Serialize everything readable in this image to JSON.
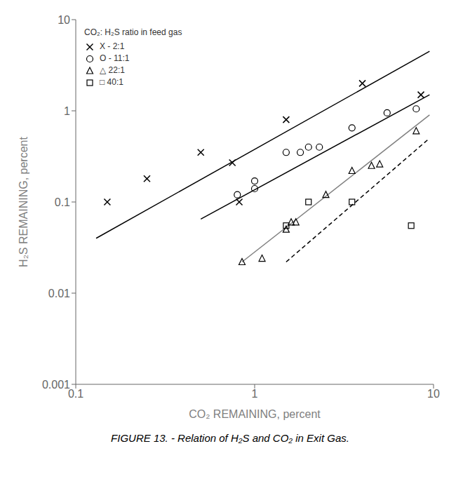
{
  "chart_data": {
    "type": "scatter",
    "title": "FIGURE 13.  -  Relation of H₂S and CO₂ in Exit Gas.",
    "x_label": "CO₂ REMAINING, percent",
    "y_label": "H₂S REMAINING, percent",
    "log": true,
    "xlim": [
      0.1,
      10
    ],
    "ylim": [
      0.001,
      10
    ],
    "xticks": [
      0.1,
      1,
      10
    ],
    "yticks": [
      0.001,
      0.01,
      0.1,
      1,
      10
    ],
    "legend": "upper left",
    "legend_title": "CO₂: H₂S ratio in feed gas",
    "series": [
      {
        "name": "X -  2:1",
        "type": "scatter",
        "marker": "x",
        "color": "#000000",
        "x": [
          0.15,
          0.25,
          0.5,
          0.75,
          0.82,
          1.5,
          4.0,
          8.5
        ],
        "values": [
          0.1,
          0.18,
          0.35,
          0.27,
          0.1,
          0.8,
          2.0,
          1.5
        ]
      },
      {
        "name": "O - 11:1",
        "type": "scatter",
        "marker": "circle",
        "color": "#000000",
        "x": [
          0.8,
          1.0,
          1.0,
          1.5,
          1.8,
          2.0,
          2.3,
          3.5,
          5.5,
          8.0
        ],
        "values": [
          0.12,
          0.14,
          0.17,
          0.35,
          0.35,
          0.4,
          0.4,
          0.65,
          0.95,
          1.05
        ]
      },
      {
        "name": "△  22:1",
        "type": "scatter",
        "marker": "triangle",
        "color": "#000000",
        "x": [
          0.85,
          1.1,
          1.5,
          1.6,
          1.7,
          2.5,
          3.5,
          4.5,
          5.0,
          8.0
        ],
        "values": [
          0.022,
          0.024,
          0.05,
          0.06,
          0.06,
          0.12,
          0.22,
          0.25,
          0.26,
          0.6
        ]
      },
      {
        "name": "□  40:1",
        "type": "scatter",
        "marker": "square",
        "color": "#000000",
        "x": [
          1.5,
          2.0,
          3.5,
          7.5
        ],
        "values": [
          0.055,
          0.1,
          0.1,
          0.055
        ]
      },
      {
        "type": "line",
        "color": "#000000",
        "line_style": "solid",
        "x": [
          0.13,
          9.5
        ],
        "values": [
          0.04,
          4.5
        ]
      },
      {
        "type": "line",
        "color": "#000000",
        "line_style": "solid",
        "x": [
          0.5,
          9.5
        ],
        "values": [
          0.065,
          1.5
        ]
      },
      {
        "type": "line",
        "color": "#808080",
        "line_style": "solid",
        "x": [
          0.85,
          9.5
        ],
        "values": [
          0.022,
          0.9
        ]
      },
      {
        "type": "line",
        "color": "#000000",
        "line_style": "dashed",
        "x": [
          1.5,
          9.5
        ],
        "values": [
          0.022,
          0.5
        ]
      }
    ]
  }
}
